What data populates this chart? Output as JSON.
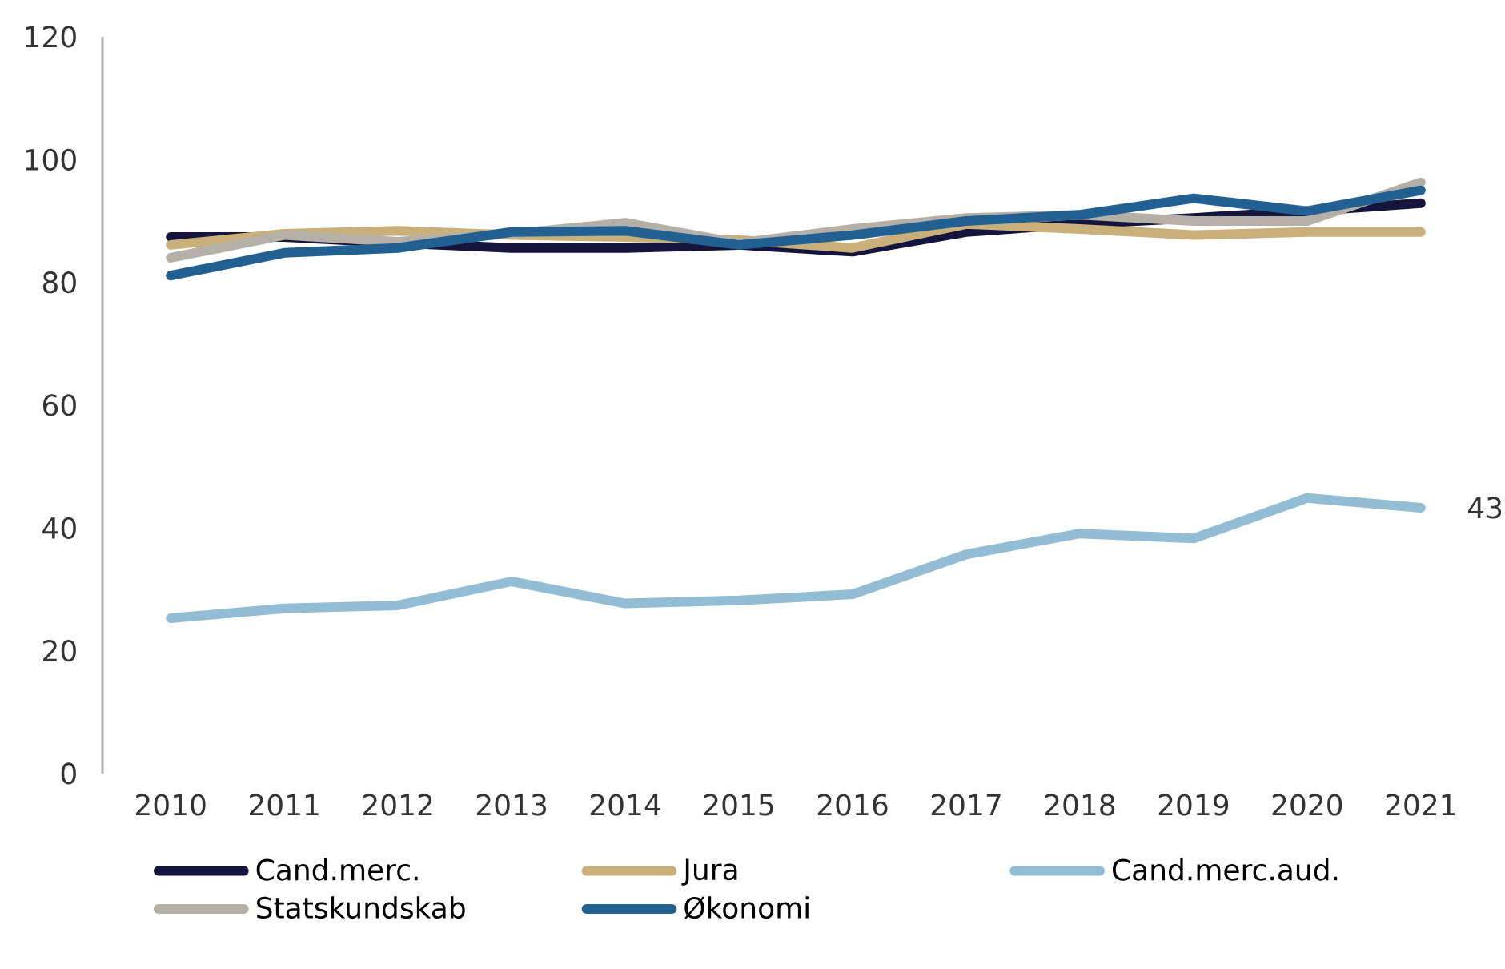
{
  "chart_data": {
    "type": "line",
    "categories": [
      "2010",
      "2011",
      "2012",
      "2013",
      "2014",
      "2015",
      "2016",
      "2017",
      "2018",
      "2019",
      "2020",
      "2021"
    ],
    "ylim": [
      0,
      120
    ],
    "yticks": [
      0,
      20,
      40,
      60,
      80,
      100,
      120
    ],
    "grid": false,
    "legend": "bottom",
    "marker": "none",
    "line_style": "solid",
    "series": [
      {
        "name": "Cand.merc.",
        "color": "#14143c",
        "values": [
          87.4,
          87.4,
          86.4,
          85.6,
          85.6,
          86.1,
          85.0,
          88.2,
          89.5,
          90.5,
          91.6,
          92.9
        ]
      },
      {
        "name": "Jura",
        "color": "#c9b07a",
        "values": [
          86.1,
          87.9,
          88.4,
          87.7,
          87.4,
          86.9,
          85.6,
          89.5,
          88.7,
          87.7,
          88.2,
          88.2
        ]
      },
      {
        "name": "Cand.merc.aud.",
        "color": "#93bdd4",
        "values": [
          25.3,
          26.9,
          27.4,
          31.3,
          27.7,
          28.2,
          29.2,
          35.7,
          39.1,
          38.3,
          44.9,
          43.3
        ],
        "value_labels": [
          null,
          null,
          null,
          null,
          null,
          null,
          null,
          null,
          null,
          null,
          null,
          "43"
        ]
      },
      {
        "name": "Statskundskab",
        "color": "#b5b0a6",
        "values": [
          84.0,
          87.7,
          86.6,
          87.9,
          89.7,
          86.4,
          88.7,
          90.5,
          91.0,
          90.0,
          90.0,
          96.3
        ]
      },
      {
        "name": "Økonomi",
        "color": "#236092",
        "values": [
          81.1,
          84.8,
          85.6,
          88.2,
          88.4,
          86.1,
          87.7,
          90.0,
          91.0,
          93.7,
          91.6,
          95.0
        ]
      }
    ]
  }
}
